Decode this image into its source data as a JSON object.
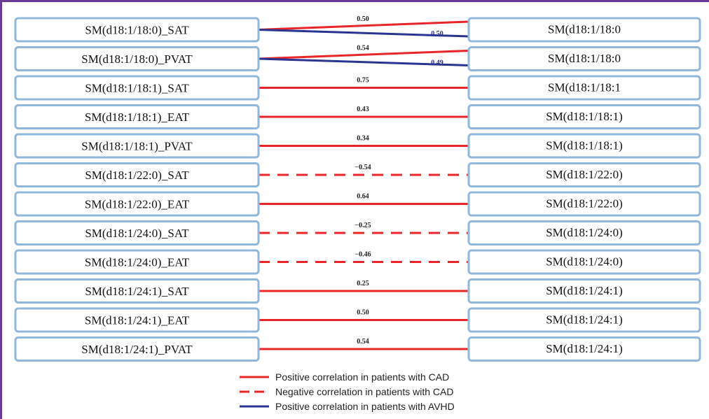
{
  "colors": {
    "positive_cad": "#e8262a",
    "negative_cad": "#e8262a",
    "positive_avhd": "#2b3591",
    "box_border": "#8fb8dc",
    "frame": "#6b3a96"
  },
  "rows": [
    {
      "left": "SM(d18:1/18:0)_SAT",
      "right": "SM(d18:1/18:0",
      "cad": "0.50",
      "cad_type": "positive",
      "avhd": "0.50"
    },
    {
      "left": "SM(d18:1/18:0)_PVAT",
      "right": "SM(d18:1/18:0",
      "cad": "0.54",
      "cad_type": "positive",
      "avhd": "0.49"
    },
    {
      "left": "SM(d18:1/18:1)_SAT",
      "right": "SM(d18:1/18:1",
      "cad": "0.75",
      "cad_type": "positive"
    },
    {
      "left": "SM(d18:1/18:1)_EAT",
      "right": "SM(d18:1/18:1)",
      "cad": "0.43",
      "cad_type": "positive"
    },
    {
      "left": "SM(d18:1/18:1)_PVAT",
      "right": "SM(d18:1/18:1)",
      "cad": "0.34",
      "cad_type": "positive"
    },
    {
      "left": "SM(d18:1/22:0)_SAT",
      "right": "SM(d18:1/22:0)",
      "cad": "−0.54",
      "cad_type": "negative"
    },
    {
      "left": "SM(d18:1/22:0)_EAT",
      "right": "SM(d18:1/22:0)",
      "cad": "0.64",
      "cad_type": "positive"
    },
    {
      "left": "SM(d18:1/24:0)_SAT",
      "right": "SM(d18:1/24:0)",
      "cad": "−0.25",
      "cad_type": "negative"
    },
    {
      "left": "SM(d18:1/24:0)_EAT",
      "right": "SM(d18:1/24:0)",
      "cad": "−0.46",
      "cad_type": "negative"
    },
    {
      "left": "SM(d18:1/24:1)_SAT",
      "right": "SM(d18:1/24:1)",
      "cad": "0.25",
      "cad_type": "positive"
    },
    {
      "left": "SM(d18:1/24:1)_EAT",
      "right": "SM(d18:1/24:1)",
      "cad": "0.50",
      "cad_type": "positive"
    },
    {
      "left": "SM(d18:1/24:1)_PVAT",
      "right": "SM(d18:1/24:1)",
      "cad": "0.54",
      "cad_type": "positive"
    }
  ],
  "legend": [
    {
      "style": "positive_cad",
      "label": "Positive correlation in patients with CAD"
    },
    {
      "style": "negative_cad",
      "label": "Negative correlation in patients with CAD"
    },
    {
      "style": "positive_avhd",
      "label": "Positive correlation in patients with AVHD"
    }
  ]
}
